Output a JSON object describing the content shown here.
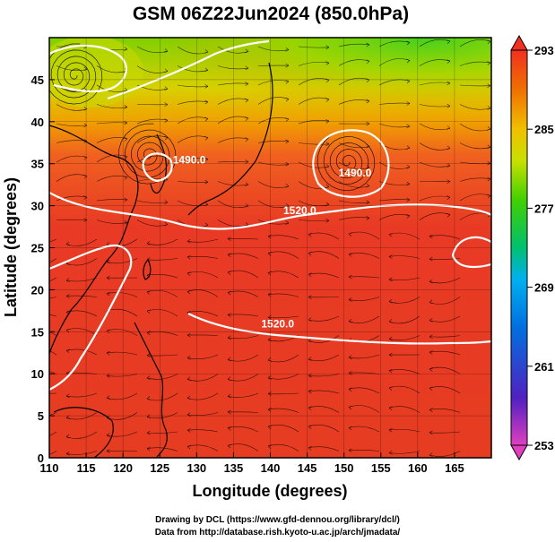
{
  "title": "GSM 06Z22Jun2024 (850.0hPa)",
  "x_axis": {
    "label": "Longitude (degrees)",
    "range": [
      110,
      170
    ],
    "ticks": [
      110,
      115,
      120,
      125,
      130,
      135,
      140,
      145,
      150,
      155,
      160,
      165
    ]
  },
  "y_axis": {
    "label": "Latitude  (degrees)",
    "range": [
      0,
      50
    ],
    "ticks": [
      0,
      5,
      10,
      15,
      20,
      25,
      30,
      35,
      40,
      45
    ]
  },
  "colorbar": {
    "ticks": [
      253,
      261,
      269,
      277,
      285,
      293
    ],
    "range": [
      253,
      293
    ],
    "colors": [
      "#e040c0",
      "#5020c0",
      "#0060e0",
      "#00b0f0",
      "#00c080",
      "#40d000",
      "#c0e000",
      "#f0c000",
      "#f08000",
      "#f04020"
    ]
  },
  "contour_labels": [
    {
      "text": "1520.0",
      "lon": 144,
      "lat": 29
    },
    {
      "text": "1520.0",
      "lon": 141,
      "lat": 15.5
    },
    {
      "text": "1490.0",
      "lon": 151.5,
      "lat": 33.5
    },
    {
      "text": "1490.0",
      "lon": 129,
      "lat": 35
    }
  ],
  "credits": [
    "Drawing by DCL (https://www.gfd-dennou.org/library/dcl/)",
    "Data from http://database.rish.kyoto-u.ac.jp/arch/jmadata/"
  ]
}
